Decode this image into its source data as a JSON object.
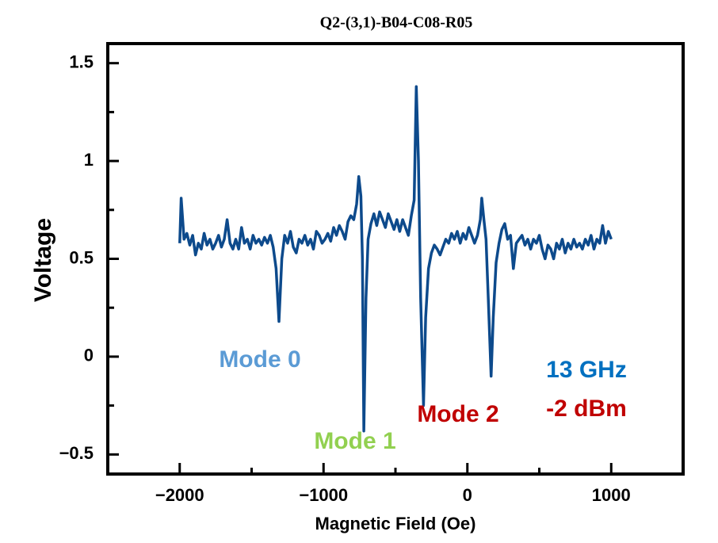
{
  "chart_data": {
    "type": "line",
    "title": "Q2-(3,1)-B04-C08-R05",
    "x_label": "Magnetic Field (Oe)",
    "y_label": "Voltage",
    "xlim": [
      -2500,
      1500
    ],
    "ylim": [
      -0.6,
      1.6
    ],
    "xticks": [
      {
        "value": -2000,
        "label": "−2000"
      },
      {
        "value": -1000,
        "label": "−1000"
      },
      0,
      1000
    ],
    "minor_xticks": [
      -2500,
      -1500,
      -500,
      500,
      1500
    ],
    "yticks": [
      {
        "value": -0.5,
        "label": "−0.5"
      },
      0,
      0.5,
      1,
      1.5
    ],
    "minor_yticks": [
      -0.25,
      0.25,
      0.75,
      1.25
    ],
    "annotations": [
      {
        "text": "Mode 0",
        "color": "#5b9bd5"
      },
      {
        "text": "Mode 1",
        "color": "#92d050"
      },
      {
        "text": "Mode 2",
        "color": "#c00000"
      },
      {
        "text": "13 GHz",
        "color": "#0070c0"
      },
      {
        "text": "-2 dBm",
        "color": "#c00000"
      }
    ],
    "x": [
      -2000,
      -1990,
      -1970,
      -1950,
      -1930,
      -1910,
      -1890,
      -1870,
      -1850,
      -1830,
      -1810,
      -1790,
      -1770,
      -1750,
      -1730,
      -1710,
      -1690,
      -1670,
      -1650,
      -1630,
      -1610,
      -1590,
      -1570,
      -1550,
      -1530,
      -1510,
      -1490,
      -1470,
      -1450,
      -1430,
      -1410,
      -1390,
      -1370,
      -1350,
      -1330,
      -1310,
      -1290,
      -1270,
      -1250,
      -1230,
      -1210,
      -1190,
      -1170,
      -1150,
      -1130,
      -1110,
      -1090,
      -1070,
      -1050,
      -1030,
      -1010,
      -990,
      -970,
      -950,
      -930,
      -910,
      -890,
      -870,
      -850,
      -830,
      -810,
      -790,
      -770,
      -755,
      -740,
      -730,
      -720,
      -705,
      -690,
      -670,
      -650,
      -630,
      -610,
      -590,
      -570,
      -550,
      -530,
      -510,
      -490,
      -470,
      -450,
      -430,
      -410,
      -390,
      -370,
      -355,
      -340,
      -325,
      -305,
      -290,
      -270,
      -250,
      -230,
      -210,
      -190,
      -170,
      -150,
      -130,
      -110,
      -90,
      -70,
      -50,
      -30,
      -10,
      10,
      30,
      50,
      70,
      90,
      100,
      115,
      130,
      145,
      165,
      180,
      200,
      220,
      240,
      260,
      280,
      300,
      320,
      340,
      360,
      380,
      400,
      420,
      440,
      460,
      480,
      500,
      520,
      540,
      560,
      580,
      600,
      620,
      640,
      660,
      680,
      700,
      720,
      740,
      760,
      780,
      800,
      820,
      840,
      860,
      880,
      900,
      920,
      940,
      960,
      980,
      1000
    ],
    "series": [
      {
        "color": "#0d4a8c",
        "values": [
          0.58,
          0.81,
          0.6,
          0.63,
          0.57,
          0.62,
          0.52,
          0.58,
          0.55,
          0.63,
          0.57,
          0.6,
          0.55,
          0.58,
          0.62,
          0.56,
          0.6,
          0.7,
          0.58,
          0.55,
          0.6,
          0.55,
          0.66,
          0.58,
          0.6,
          0.55,
          0.62,
          0.58,
          0.6,
          0.57,
          0.61,
          0.58,
          0.62,
          0.56,
          0.45,
          0.18,
          0.5,
          0.62,
          0.58,
          0.64,
          0.56,
          0.53,
          0.6,
          0.58,
          0.62,
          0.57,
          0.6,
          0.55,
          0.64,
          0.62,
          0.58,
          0.6,
          0.63,
          0.59,
          0.66,
          0.62,
          0.67,
          0.64,
          0.6,
          0.69,
          0.72,
          0.7,
          0.78,
          0.92,
          0.82,
          0.5,
          -0.38,
          0.3,
          0.6,
          0.68,
          0.73,
          0.67,
          0.74,
          0.7,
          0.66,
          0.73,
          0.69,
          0.65,
          0.7,
          0.64,
          0.7,
          0.66,
          0.62,
          0.72,
          0.8,
          1.38,
          1.0,
          0.3,
          -0.25,
          0.2,
          0.45,
          0.53,
          0.57,
          0.55,
          0.52,
          0.56,
          0.6,
          0.58,
          0.63,
          0.6,
          0.64,
          0.58,
          0.63,
          0.6,
          0.66,
          0.62,
          0.58,
          0.62,
          0.7,
          0.81,
          0.7,
          0.6,
          0.3,
          -0.1,
          0.2,
          0.48,
          0.58,
          0.65,
          0.68,
          0.6,
          0.62,
          0.45,
          0.58,
          0.6,
          0.62,
          0.57,
          0.6,
          0.55,
          0.6,
          0.58,
          0.62,
          0.55,
          0.5,
          0.57,
          0.55,
          0.5,
          0.58,
          0.55,
          0.6,
          0.53,
          0.58,
          0.55,
          0.6,
          0.56,
          0.58,
          0.55,
          0.6,
          0.57,
          0.62,
          0.55,
          0.6,
          0.58,
          0.67,
          0.58,
          0.64,
          0.6
        ]
      }
    ]
  }
}
